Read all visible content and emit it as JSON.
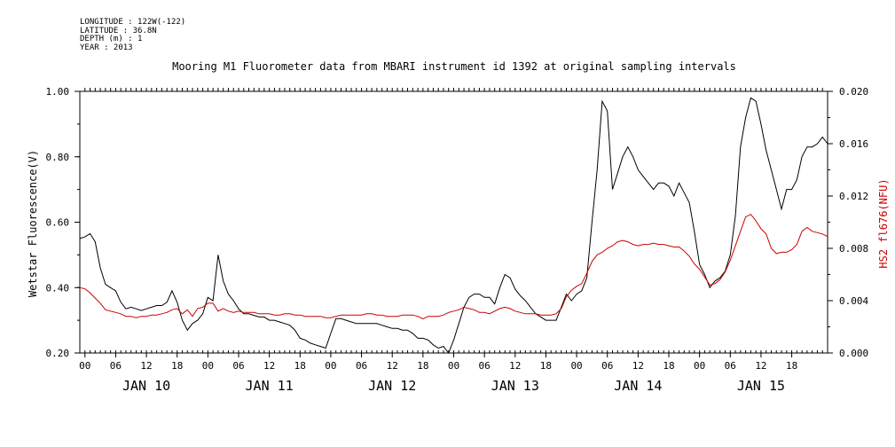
{
  "meta": {
    "longitude": "LONGITUDE : 122W(-122)",
    "latitude": "LATITUDE : 36.8N",
    "depth": "DEPTH (m) : 1",
    "year": "YEAR : 2013"
  },
  "chart_data": {
    "type": "line",
    "title": "Mooring M1 Fluorometer data from MBARI instrument id 1392 at original sampling intervals",
    "ylabel": "Wetstar Fluorescence(V)",
    "ylabel_right": "HS2 fl676(NFU)",
    "ylim": [
      0.2,
      1.0
    ],
    "ylim_right": [
      0.0,
      0.02
    ],
    "y_ticks": [
      "0.20",
      "0.40",
      "0.60",
      "0.80",
      "1.00"
    ],
    "y_ticks_right": [
      "0.000",
      "0.004",
      "0.008",
      "0.012",
      "0.016",
      "0.020"
    ],
    "x_hour_ticks": [
      "00",
      "06",
      "12",
      "18",
      "00",
      "06",
      "12",
      "18",
      "00",
      "06",
      "12",
      "18",
      "00",
      "06",
      "12",
      "18",
      "00",
      "06",
      "12",
      "18",
      "00",
      "06",
      "12",
      "18"
    ],
    "x_day_labels": [
      "JAN 10",
      "JAN 11",
      "JAN 12",
      "JAN 13",
      "JAN 14",
      "JAN 15"
    ],
    "x_unit": "hours since JAN 10 00:00",
    "xlim": [
      -1,
      145
    ],
    "colors": {
      "primary": "#000000",
      "secondary": "#cc0000"
    },
    "series": [
      {
        "name": "Wetstar Fluorescence(V)",
        "axis": "left",
        "color": "#000000",
        "points": [
          [
            -1,
            0.55
          ],
          [
            0,
            0.555
          ],
          [
            1,
            0.565
          ],
          [
            2,
            0.54
          ],
          [
            3,
            0.46
          ],
          [
            4,
            0.41
          ],
          [
            5,
            0.4
          ],
          [
            6,
            0.39
          ],
          [
            7,
            0.355
          ],
          [
            8,
            0.335
          ],
          [
            9,
            0.34
          ],
          [
            10,
            0.335
          ],
          [
            11,
            0.33
          ],
          [
            12,
            0.335
          ],
          [
            13,
            0.34
          ],
          [
            14,
            0.345
          ],
          [
            15,
            0.345
          ],
          [
            16,
            0.355
          ],
          [
            17,
            0.39
          ],
          [
            18,
            0.355
          ],
          [
            19,
            0.3
          ],
          [
            20,
            0.27
          ],
          [
            21,
            0.29
          ],
          [
            22,
            0.3
          ],
          [
            23,
            0.32
          ],
          [
            24,
            0.37
          ],
          [
            25,
            0.36
          ],
          [
            26,
            0.5
          ],
          [
            27,
            0.42
          ],
          [
            28,
            0.38
          ],
          [
            29,
            0.36
          ],
          [
            30,
            0.335
          ],
          [
            31,
            0.32
          ],
          [
            32,
            0.32
          ],
          [
            33,
            0.315
          ],
          [
            34,
            0.31
          ],
          [
            35,
            0.31
          ],
          [
            36,
            0.3
          ],
          [
            37,
            0.3
          ],
          [
            38,
            0.295
          ],
          [
            39,
            0.29
          ],
          [
            40,
            0.285
          ],
          [
            41,
            0.27
          ],
          [
            42,
            0.245
          ],
          [
            43,
            0.24
          ],
          [
            44,
            0.23
          ],
          [
            45,
            0.225
          ],
          [
            46,
            0.22
          ],
          [
            47,
            0.215
          ],
          [
            48,
            0.26
          ],
          [
            49,
            0.305
          ],
          [
            50,
            0.305
          ],
          [
            51,
            0.3
          ],
          [
            52,
            0.295
          ],
          [
            53,
            0.29
          ],
          [
            54,
            0.29
          ],
          [
            55,
            0.29
          ],
          [
            56,
            0.29
          ],
          [
            57,
            0.29
          ],
          [
            58,
            0.285
          ],
          [
            59,
            0.28
          ],
          [
            60,
            0.275
          ],
          [
            61,
            0.275
          ],
          [
            62,
            0.27
          ],
          [
            63,
            0.27
          ],
          [
            64,
            0.26
          ],
          [
            65,
            0.245
          ],
          [
            66,
            0.245
          ],
          [
            67,
            0.24
          ],
          [
            68,
            0.225
          ],
          [
            69,
            0.215
          ],
          [
            70,
            0.22
          ],
          [
            71,
            0.2
          ],
          [
            72,
            0.24
          ],
          [
            73,
            0.29
          ],
          [
            74,
            0.34
          ],
          [
            75,
            0.37
          ],
          [
            76,
            0.38
          ],
          [
            77,
            0.38
          ],
          [
            78,
            0.37
          ],
          [
            79,
            0.37
          ],
          [
            80,
            0.35
          ],
          [
            81,
            0.4
          ],
          [
            82,
            0.44
          ],
          [
            83,
            0.43
          ],
          [
            84,
            0.395
          ],
          [
            85,
            0.375
          ],
          [
            86,
            0.36
          ],
          [
            87,
            0.34
          ],
          [
            88,
            0.32
          ],
          [
            89,
            0.31
          ],
          [
            90,
            0.3
          ],
          [
            91,
            0.3
          ],
          [
            92,
            0.3
          ],
          [
            93,
            0.34
          ],
          [
            94,
            0.38
          ],
          [
            95,
            0.36
          ],
          [
            96,
            0.38
          ],
          [
            97,
            0.39
          ],
          [
            98,
            0.43
          ],
          [
            99,
            0.6
          ],
          [
            100,
            0.76
          ],
          [
            101,
            0.97
          ],
          [
            102,
            0.94
          ],
          [
            103,
            0.7
          ],
          [
            104,
            0.75
          ],
          [
            105,
            0.8
          ],
          [
            106,
            0.83
          ],
          [
            107,
            0.8
          ],
          [
            108,
            0.76
          ],
          [
            109,
            0.74
          ],
          [
            110,
            0.72
          ],
          [
            111,
            0.7
          ],
          [
            112,
            0.72
          ],
          [
            113,
            0.72
          ],
          [
            114,
            0.71
          ],
          [
            115,
            0.68
          ],
          [
            116,
            0.72
          ],
          [
            117,
            0.69
          ],
          [
            118,
            0.66
          ],
          [
            119,
            0.57
          ],
          [
            120,
            0.47
          ],
          [
            121,
            0.44
          ],
          [
            122,
            0.4
          ],
          [
            123,
            0.42
          ],
          [
            124,
            0.43
          ],
          [
            125,
            0.45
          ],
          [
            126,
            0.5
          ],
          [
            127,
            0.62
          ],
          [
            128,
            0.83
          ],
          [
            129,
            0.92
          ],
          [
            130,
            0.98
          ],
          [
            131,
            0.97
          ],
          [
            132,
            0.9
          ],
          [
            133,
            0.82
          ],
          [
            134,
            0.76
          ],
          [
            135,
            0.7
          ],
          [
            136,
            0.64
          ],
          [
            137,
            0.7
          ],
          [
            138,
            0.7
          ],
          [
            139,
            0.73
          ],
          [
            140,
            0.8
          ],
          [
            141,
            0.83
          ],
          [
            142,
            0.83
          ],
          [
            143,
            0.84
          ],
          [
            144,
            0.86
          ],
          [
            145,
            0.84
          ]
        ]
      },
      {
        "name": "HS2 fl676(NFU)",
        "axis": "right",
        "color": "#cc0000",
        "points": [
          [
            -1,
            0.005
          ],
          [
            0,
            0.0049
          ],
          [
            1,
            0.0046
          ],
          [
            2,
            0.0042
          ],
          [
            3,
            0.0038
          ],
          [
            4,
            0.0033
          ],
          [
            5,
            0.0032
          ],
          [
            6,
            0.0031
          ],
          [
            7,
            0.003
          ],
          [
            8,
            0.0028
          ],
          [
            9,
            0.0028
          ],
          [
            10,
            0.0027
          ],
          [
            11,
            0.0028
          ],
          [
            12,
            0.0028
          ],
          [
            13,
            0.0029
          ],
          [
            14,
            0.0029
          ],
          [
            15,
            0.003
          ],
          [
            16,
            0.0031
          ],
          [
            17,
            0.0033
          ],
          [
            18,
            0.0034
          ],
          [
            19,
            0.003
          ],
          [
            20,
            0.0033
          ],
          [
            21,
            0.0028
          ],
          [
            22,
            0.0034
          ],
          [
            23,
            0.0035
          ],
          [
            24,
            0.0038
          ],
          [
            25,
            0.0038
          ],
          [
            26,
            0.0032
          ],
          [
            27,
            0.0034
          ],
          [
            28,
            0.0032
          ],
          [
            29,
            0.0031
          ],
          [
            30,
            0.0032
          ],
          [
            31,
            0.0031
          ],
          [
            32,
            0.0031
          ],
          [
            33,
            0.0031
          ],
          [
            34,
            0.003
          ],
          [
            35,
            0.003
          ],
          [
            36,
            0.003
          ],
          [
            37,
            0.0029
          ],
          [
            38,
            0.0029
          ],
          [
            39,
            0.003
          ],
          [
            40,
            0.003
          ],
          [
            41,
            0.0029
          ],
          [
            42,
            0.0029
          ],
          [
            43,
            0.0028
          ],
          [
            44,
            0.0028
          ],
          [
            45,
            0.0028
          ],
          [
            46,
            0.0028
          ],
          [
            47,
            0.0027
          ],
          [
            48,
            0.0027
          ],
          [
            49,
            0.0028
          ],
          [
            50,
            0.0029
          ],
          [
            51,
            0.0029
          ],
          [
            52,
            0.0029
          ],
          [
            53,
            0.0029
          ],
          [
            54,
            0.0029
          ],
          [
            55,
            0.003
          ],
          [
            56,
            0.003
          ],
          [
            57,
            0.0029
          ],
          [
            58,
            0.0029
          ],
          [
            59,
            0.0028
          ],
          [
            60,
            0.0028
          ],
          [
            61,
            0.0028
          ],
          [
            62,
            0.0029
          ],
          [
            63,
            0.0029
          ],
          [
            64,
            0.0029
          ],
          [
            65,
            0.0028
          ],
          [
            66,
            0.0026
          ],
          [
            67,
            0.0028
          ],
          [
            68,
            0.0028
          ],
          [
            69,
            0.0028
          ],
          [
            70,
            0.0029
          ],
          [
            71,
            0.0031
          ],
          [
            72,
            0.0032
          ],
          [
            73,
            0.0033
          ],
          [
            74,
            0.0035
          ],
          [
            75,
            0.0034
          ],
          [
            76,
            0.0033
          ],
          [
            77,
            0.0031
          ],
          [
            78,
            0.0031
          ],
          [
            79,
            0.003
          ],
          [
            80,
            0.0032
          ],
          [
            81,
            0.0034
          ],
          [
            82,
            0.0035
          ],
          [
            83,
            0.0034
          ],
          [
            84,
            0.0032
          ],
          [
            85,
            0.0031
          ],
          [
            86,
            0.003
          ],
          [
            87,
            0.003
          ],
          [
            88,
            0.003
          ],
          [
            89,
            0.0029
          ],
          [
            90,
            0.0029
          ],
          [
            91,
            0.0029
          ],
          [
            92,
            0.003
          ],
          [
            93,
            0.0034
          ],
          [
            94,
            0.0043
          ],
          [
            95,
            0.0048
          ],
          [
            96,
            0.0051
          ],
          [
            97,
            0.0053
          ],
          [
            98,
            0.0061
          ],
          [
            99,
            0.007
          ],
          [
            100,
            0.0075
          ],
          [
            101,
            0.0077
          ],
          [
            102,
            0.008
          ],
          [
            103,
            0.0082
          ],
          [
            104,
            0.0085
          ],
          [
            105,
            0.0086
          ],
          [
            106,
            0.0085
          ],
          [
            107,
            0.0083
          ],
          [
            108,
            0.0082
          ],
          [
            109,
            0.0083
          ],
          [
            110,
            0.0083
          ],
          [
            111,
            0.0084
          ],
          [
            112,
            0.0083
          ],
          [
            113,
            0.0083
          ],
          [
            114,
            0.0082
          ],
          [
            115,
            0.0081
          ],
          [
            116,
            0.0081
          ],
          [
            117,
            0.0078
          ],
          [
            118,
            0.0074
          ],
          [
            119,
            0.0068
          ],
          [
            120,
            0.0064
          ],
          [
            121,
            0.0058
          ],
          [
            122,
            0.0052
          ],
          [
            123,
            0.0053
          ],
          [
            124,
            0.0056
          ],
          [
            125,
            0.0062
          ],
          [
            126,
            0.0071
          ],
          [
            127,
            0.0082
          ],
          [
            128,
            0.0093
          ],
          [
            129,
            0.0104
          ],
          [
            130,
            0.0106
          ],
          [
            131,
            0.0101
          ],
          [
            132,
            0.0095
          ],
          [
            133,
            0.0091
          ],
          [
            134,
            0.008
          ],
          [
            135,
            0.0076
          ],
          [
            136,
            0.0077
          ],
          [
            137,
            0.0077
          ],
          [
            138,
            0.0079
          ],
          [
            139,
            0.0083
          ],
          [
            140,
            0.0093
          ],
          [
            141,
            0.0096
          ],
          [
            142,
            0.0093
          ],
          [
            143,
            0.0092
          ],
          [
            144,
            0.0091
          ],
          [
            145,
            0.0089
          ]
        ]
      }
    ]
  }
}
